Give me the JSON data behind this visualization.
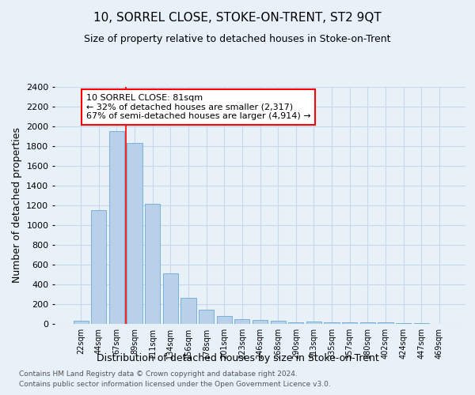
{
  "title": "10, SORREL CLOSE, STOKE-ON-TRENT, ST2 9QT",
  "subtitle": "Size of property relative to detached houses in Stoke-on-Trent",
  "xlabel": "Distribution of detached houses by size in Stoke-on-Trent",
  "ylabel": "Number of detached properties",
  "footnote1": "Contains HM Land Registry data © Crown copyright and database right 2024.",
  "footnote2": "Contains public sector information licensed under the Open Government Licence v3.0.",
  "bar_labels": [
    "22sqm",
    "44sqm",
    "67sqm",
    "89sqm",
    "111sqm",
    "134sqm",
    "156sqm",
    "178sqm",
    "201sqm",
    "223sqm",
    "246sqm",
    "268sqm",
    "290sqm",
    "313sqm",
    "335sqm",
    "357sqm",
    "380sqm",
    "402sqm",
    "424sqm",
    "447sqm",
    "469sqm"
  ],
  "bar_values": [
    30,
    1150,
    1950,
    1830,
    1220,
    510,
    265,
    148,
    82,
    47,
    40,
    35,
    18,
    22,
    18,
    15,
    14,
    18,
    5,
    5,
    2
  ],
  "bar_color": "#b8d0ea",
  "bar_edge_color": "#6aaad4",
  "grid_color": "#c8d8ec",
  "background_color": "#e8f0f8",
  "vline_x_index": 2,
  "vline_color": "red",
  "annotation_line1": "10 SORREL CLOSE: 81sqm",
  "annotation_line2": "← 32% of detached houses are smaller (2,317)",
  "annotation_line3": "67% of semi-detached houses are larger (4,914) →",
  "annotation_box_color": "white",
  "annotation_box_edge": "red",
  "ylim": [
    0,
    2400
  ],
  "yticks": [
    0,
    200,
    400,
    600,
    800,
    1000,
    1200,
    1400,
    1600,
    1800,
    2000,
    2200,
    2400
  ],
  "title_fontsize": 11,
  "subtitle_fontsize": 9,
  "ylabel_fontsize": 9,
  "xlabel_fontsize": 9,
  "tick_fontsize": 7,
  "annotation_fontsize": 8,
  "footnote_fontsize": 6.5
}
